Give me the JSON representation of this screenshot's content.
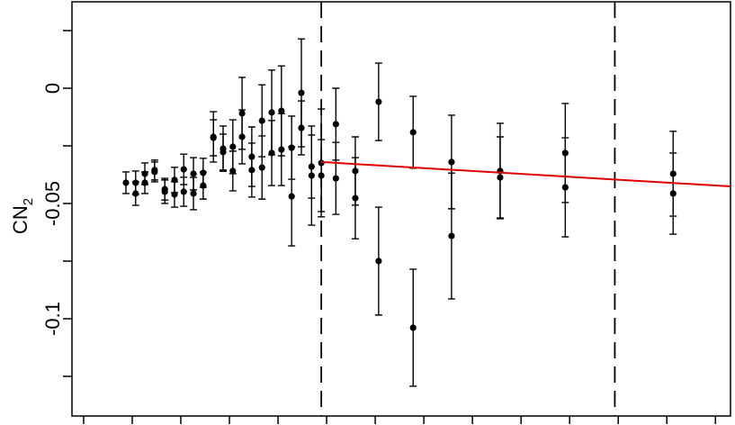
{
  "chart_data": {
    "type": "errorbar-scatter",
    "y_label": "CN",
    "y_label_sub": "2",
    "xlim": [
      -0.24,
      13.31
    ],
    "ylim": [
      -0.1422,
      0.0375
    ],
    "xticks": [
      0,
      1,
      2,
      3,
      4,
      5,
      6,
      7,
      8,
      9,
      10,
      11,
      12,
      13
    ],
    "yticks": [
      0,
      -0.05,
      -0.1
    ],
    "yminor": [
      0.025,
      -0.025,
      -0.075,
      -0.125
    ],
    "vlines": [
      4.89,
      10.93
    ],
    "color": "#000000",
    "x": [
      0.87,
      1.07,
      1.07,
      1.26,
      1.26,
      1.46,
      1.46,
      1.67,
      1.67,
      1.87,
      1.87,
      2.06,
      2.06,
      2.26,
      2.26,
      2.46,
      2.46,
      2.67,
      2.67,
      2.87,
      2.87,
      3.07,
      3.07,
      3.26,
      3.26,
      3.46,
      3.46,
      3.67,
      3.67,
      3.87,
      3.87,
      4.07,
      4.07,
      4.28,
      4.28,
      4.48,
      4.48,
      4.69,
      4.69,
      4.89,
      4.89,
      5.19,
      5.19,
      5.59,
      5.59,
      6.07,
      6.07,
      6.78,
      6.78,
      7.57,
      7.57,
      8.57,
      8.57,
      9.91,
      9.91,
      12.13,
      12.13
    ],
    "values": [
      -0.041,
      -0.041,
      -0.0457,
      -0.0371,
      -0.041,
      -0.0363,
      -0.0355,
      -0.0438,
      -0.0449,
      -0.0398,
      -0.0461,
      -0.0352,
      -0.0449,
      -0.0371,
      -0.0457,
      -0.0367,
      -0.0422,
      -0.0211,
      -0.0215,
      -0.0262,
      -0.0277,
      -0.0254,
      -0.0359,
      -0.0109,
      -0.0211,
      -0.0297,
      -0.0355,
      -0.0141,
      -0.0344,
      -0.0105,
      -0.0281,
      -0.0098,
      -0.0266,
      -0.0469,
      -0.0258,
      -0.002,
      -0.0172,
      -0.034,
      -0.0379,
      -0.0324,
      -0.0379,
      -0.0156,
      -0.0391,
      -0.0359,
      -0.0477,
      -0.0059,
      -0.075,
      -0.0191,
      -0.1039,
      -0.032,
      -0.0641,
      -0.0359,
      -0.0387,
      -0.0281,
      -0.043,
      -0.0371,
      -0.0457
    ],
    "errors": [
      0.0047,
      0.0051,
      0.0051,
      0.0047,
      0.0047,
      0.0043,
      0.0043,
      0.0047,
      0.0051,
      0.0055,
      0.0055,
      0.0066,
      0.0063,
      0.007,
      0.007,
      0.0063,
      0.0059,
      0.0109,
      0.0078,
      0.0098,
      0.0078,
      0.0117,
      0.0086,
      0.0156,
      0.0117,
      0.0129,
      0.0117,
      0.0156,
      0.0137,
      0.0184,
      0.0141,
      0.0195,
      0.0156,
      0.0215,
      0.0137,
      0.0234,
      0.0117,
      0.0137,
      0.0215,
      0.0234,
      0.0156,
      0.0156,
      0.0156,
      0.0148,
      0.0176,
      0.0168,
      0.0234,
      0.0156,
      0.0254,
      0.0203,
      0.0273,
      0.0207,
      0.0176,
      0.0215,
      0.0215,
      0.0184,
      0.0176
    ],
    "fit": {
      "x": [
        4.89,
        13.31
      ],
      "values": [
        -0.032,
        -0.0426
      ],
      "color": "#e00000"
    }
  }
}
